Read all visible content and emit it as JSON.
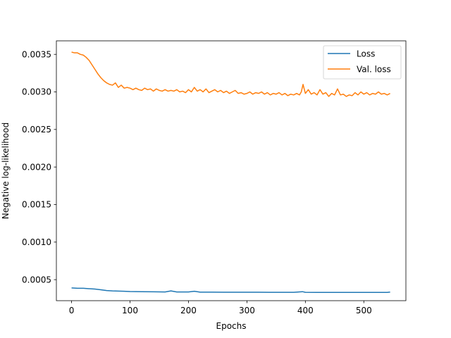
{
  "chart_data": {
    "type": "line",
    "title": "",
    "xlabel": "Epochs",
    "ylabel": "Negative log-likelihood",
    "xlim": [
      -26,
      572
    ],
    "ylim": [
      0.00022,
      0.00368
    ],
    "xticks": [
      0,
      100,
      200,
      300,
      400,
      500
    ],
    "xtick_labels": [
      "0",
      "100",
      "200",
      "300",
      "400",
      "500"
    ],
    "yticks": [
      0.0005,
      0.001,
      0.0015,
      0.002,
      0.0025,
      0.003,
      0.0035
    ],
    "ytick_labels": [
      "0.0005",
      "0.0010",
      "0.0015",
      "0.0020",
      "0.0025",
      "0.0030",
      "0.0035"
    ],
    "grid": false,
    "legend_position": "top-right",
    "series": [
      {
        "name": "Loss",
        "color": "#1f77b4",
        "x": [
          0,
          10,
          20,
          30,
          40,
          50,
          60,
          70,
          80,
          90,
          100,
          120,
          140,
          160,
          170,
          180,
          200,
          210,
          220,
          240,
          260,
          280,
          300,
          320,
          340,
          360,
          380,
          395,
          400,
          420,
          440,
          460,
          480,
          500,
          520,
          540,
          545
        ],
        "y": [
          0.00039,
          0.000385,
          0.000385,
          0.00038,
          0.000375,
          0.000365,
          0.000355,
          0.00035,
          0.000348,
          0.000345,
          0.000342,
          0.00034,
          0.000338,
          0.000336,
          0.00035,
          0.000336,
          0.000336,
          0.000345,
          0.000334,
          0.000334,
          0.000333,
          0.000333,
          0.000332,
          0.000332,
          0.000331,
          0.000331,
          0.000331,
          0.00034,
          0.000331,
          0.00033,
          0.00033,
          0.00033,
          0.00033,
          0.00033,
          0.00033,
          0.00033,
          0.000335
        ]
      },
      {
        "name": "Val. loss",
        "color": "#ff7f0e",
        "x": [
          0,
          5,
          10,
          15,
          20,
          25,
          30,
          35,
          40,
          45,
          50,
          55,
          60,
          65,
          70,
          75,
          80,
          85,
          90,
          95,
          100,
          105,
          110,
          115,
          120,
          125,
          130,
          135,
          140,
          145,
          150,
          155,
          160,
          165,
          170,
          175,
          180,
          185,
          190,
          195,
          200,
          205,
          210,
          215,
          220,
          225,
          230,
          235,
          240,
          245,
          250,
          255,
          260,
          265,
          270,
          275,
          280,
          285,
          290,
          295,
          300,
          305,
          310,
          315,
          320,
          325,
          330,
          335,
          340,
          345,
          350,
          355,
          360,
          365,
          370,
          375,
          380,
          385,
          390,
          393,
          396,
          400,
          405,
          410,
          415,
          420,
          425,
          430,
          435,
          440,
          445,
          450,
          455,
          460,
          465,
          470,
          475,
          480,
          485,
          490,
          495,
          500,
          505,
          510,
          515,
          520,
          525,
          530,
          535,
          540,
          545
        ],
        "y": [
          0.00353,
          0.00352,
          0.00352,
          0.0035,
          0.00349,
          0.00346,
          0.00342,
          0.00336,
          0.0033,
          0.00324,
          0.00319,
          0.00315,
          0.00312,
          0.0031,
          0.00309,
          0.00312,
          0.00306,
          0.00309,
          0.00305,
          0.00306,
          0.00305,
          0.00303,
          0.00305,
          0.00303,
          0.00302,
          0.00305,
          0.00303,
          0.00304,
          0.00301,
          0.00304,
          0.00302,
          0.00301,
          0.00303,
          0.00301,
          0.00302,
          0.00301,
          0.00303,
          0.003,
          0.00301,
          0.00299,
          0.00303,
          0.003,
          0.00306,
          0.00301,
          0.00303,
          0.003,
          0.00304,
          0.00299,
          0.00301,
          0.00303,
          0.003,
          0.00302,
          0.00299,
          0.00301,
          0.00298,
          0.003,
          0.00302,
          0.00298,
          0.00299,
          0.00297,
          0.00298,
          0.003,
          0.00297,
          0.00299,
          0.00298,
          0.003,
          0.00297,
          0.00299,
          0.00296,
          0.00298,
          0.00297,
          0.00299,
          0.00296,
          0.00298,
          0.00295,
          0.00297,
          0.00296,
          0.00298,
          0.00296,
          0.003,
          0.0031,
          0.00298,
          0.00303,
          0.00297,
          0.00299,
          0.00296,
          0.00303,
          0.00297,
          0.00299,
          0.00294,
          0.00298,
          0.00296,
          0.00304,
          0.00296,
          0.00297,
          0.00294,
          0.00296,
          0.00295,
          0.00299,
          0.00296,
          0.003,
          0.00297,
          0.00299,
          0.00296,
          0.00298,
          0.00297,
          0.003,
          0.00297,
          0.00298,
          0.00296,
          0.00298
        ]
      }
    ]
  }
}
